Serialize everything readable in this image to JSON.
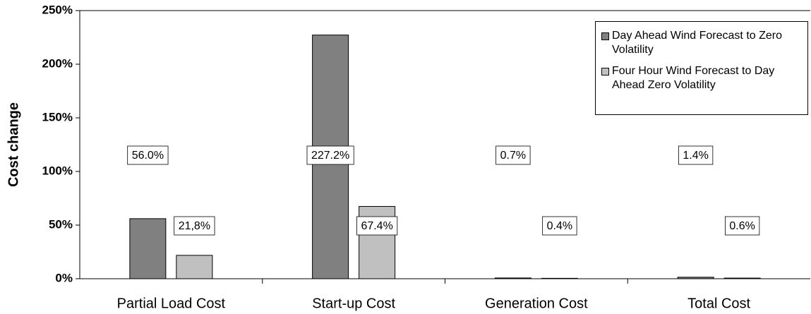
{
  "chart_data": {
    "type": "bar",
    "y_label": "Cost change",
    "categories": [
      "Partial Load Cost",
      "Start-up Cost",
      "Generation Cost",
      "Total Cost"
    ],
    "series": [
      {
        "name": "Day Ahead Wind Forecast to Zero Volatility",
        "color": "#808080",
        "values": [
          56.0,
          227.2,
          0.7,
          1.4
        ],
        "value_labels": [
          "56.0%",
          "227.2%",
          "0.7%",
          "1.4%"
        ]
      },
      {
        "name": "Four Hour Wind Forecast to Day Ahead Zero Volatility",
        "color": "#c0c0c0",
        "values": [
          21.8,
          67.4,
          0.4,
          0.6
        ],
        "value_labels": [
          "21,8%",
          "67.4%",
          "0.4%",
          "0.6%"
        ]
      }
    ],
    "ylim": [
      0,
      250
    ],
    "yticks": [
      {
        "value": 0,
        "label": "0%"
      },
      {
        "value": 50,
        "label": "50%"
      },
      {
        "value": 100,
        "label": "100%"
      },
      {
        "value": 150,
        "label": "150%"
      },
      {
        "value": 200,
        "label": "200%"
      },
      {
        "value": 250,
        "label": "250%"
      }
    ],
    "legend": "top-right"
  }
}
